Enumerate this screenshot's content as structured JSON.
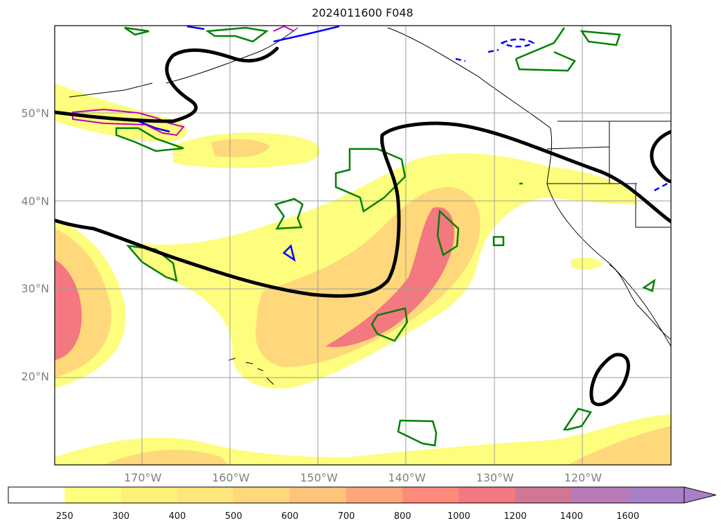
{
  "title": "2024011600 F048",
  "map": {
    "lat_labels": [
      {
        "text": "50°N",
        "lat": 50
      },
      {
        "text": "40°N",
        "lat": 40
      },
      {
        "text": "30°N",
        "lat": 30
      },
      {
        "text": "20°N",
        "lat": 20
      }
    ],
    "lon_labels": [
      {
        "text": "170°W",
        "lon": -170
      },
      {
        "text": "160°W",
        "lon": -160
      },
      {
        "text": "150°W",
        "lon": -150
      },
      {
        "text": "140°W",
        "lon": -140
      },
      {
        "text": "130°W",
        "lon": -130
      },
      {
        "text": "120°W",
        "lon": -120
      }
    ],
    "extent": {
      "lon_min": -180,
      "lon_max": -110,
      "lat_min": 10,
      "lat_max": 60
    },
    "grid": true
  },
  "colorbar": {
    "labels": [
      "250",
      "300",
      "400",
      "500",
      "600",
      "700",
      "800",
      "1000",
      "1200",
      "1400",
      "1600"
    ],
    "colors": [
      "#ffffff",
      "#fdfd7e",
      "#fef17a",
      "#fee67a",
      "#fed87a",
      "#fec47a",
      "#fea67a",
      "#fd8a7a",
      "#f3787f",
      "#d07893",
      "#b87ab8",
      "#a97fc7"
    ],
    "extend": "max"
  },
  "colors": {
    "fill_low": "#fdfd7e",
    "fill_mid": "#fed87a",
    "fill_high": "#f3787f",
    "contour_black": "#000000",
    "contour_green": "#008000",
    "contour_blue": "#0000ff",
    "contour_magenta": "#c000c0",
    "coastline": "#000000"
  }
}
